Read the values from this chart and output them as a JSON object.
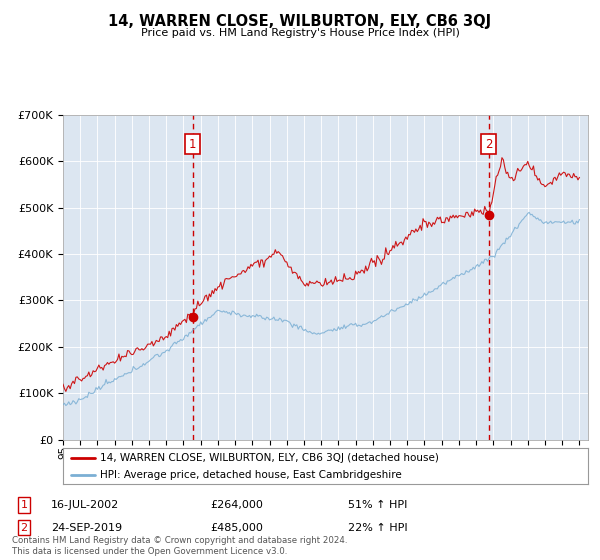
{
  "title": "14, WARREN CLOSE, WILBURTON, ELY, CB6 3QJ",
  "subtitle": "Price paid vs. HM Land Registry's House Price Index (HPI)",
  "background_color": "#dce6f1",
  "fig_bg_color": "#ffffff",
  "legend_line1": "14, WARREN CLOSE, WILBURTON, ELY, CB6 3QJ (detached house)",
  "legend_line2": "HPI: Average price, detached house, East Cambridgeshire",
  "sale1_date": "16-JUL-2002",
  "sale1_price": 264000,
  "sale1_label": "£264,000",
  "sale1_hpi": "51% ↑ HPI",
  "sale1_x": 2002.54,
  "sale2_date": "24-SEP-2019",
  "sale2_price": 485000,
  "sale2_label": "£485,000",
  "sale2_hpi": "22% ↑ HPI",
  "sale2_x": 2019.73,
  "footer1": "Contains HM Land Registry data © Crown copyright and database right 2024.",
  "footer2": "This data is licensed under the Open Government Licence v3.0.",
  "red_color": "#cc0000",
  "blue_color": "#7bafd4",
  "dashed_color": "#cc0000",
  "ylim_max": 700000,
  "ylim_min": 0,
  "xlim_min": 1995,
  "xlim_max": 2025.5
}
